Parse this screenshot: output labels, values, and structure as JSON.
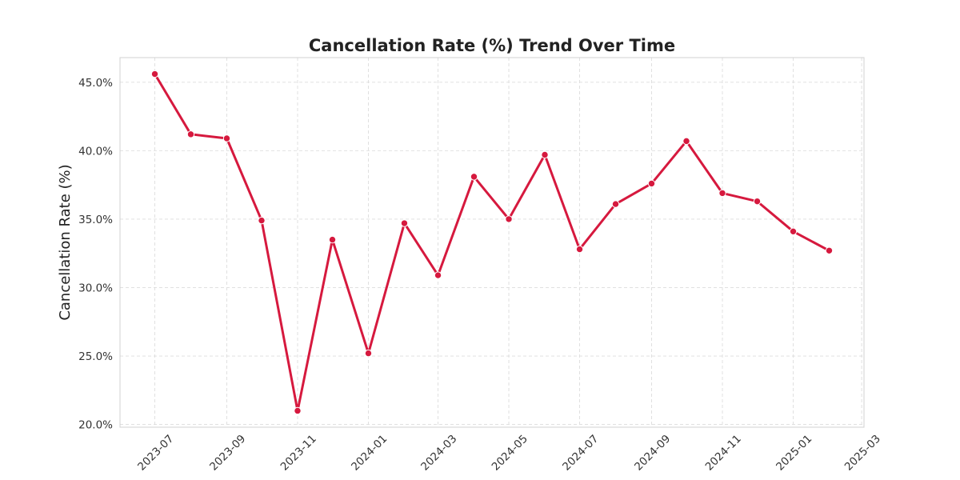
{
  "colors": {
    "line": "#d6193e",
    "marker_edge": "#ffffff",
    "grid": "#dddddd",
    "frame": "#d0d0d0",
    "text": "#222222",
    "background": "#ffffff"
  },
  "chart_data": {
    "type": "line",
    "title": "Cancellation Rate (%) Trend Over Time",
    "xlabel": "",
    "ylabel": "Cancellation Rate (%)",
    "ylim": [
      19.8,
      46.8
    ],
    "grid": true,
    "y_ticks": [
      20,
      25,
      30,
      35,
      40,
      45
    ],
    "y_tick_labels": [
      "20.0%",
      "25.0%",
      "30.0%",
      "35.0%",
      "40.0%",
      "45.0%"
    ],
    "x_ticks": [
      "2023-07-01",
      "2023-09-01",
      "2023-11-01",
      "2024-01-01",
      "2024-03-01",
      "2024-05-01",
      "2024-07-01",
      "2024-09-01",
      "2024-11-01",
      "2025-01-01",
      "2025-03-01"
    ],
    "x_tick_labels": [
      "2023-07",
      "2023-09",
      "2023-11",
      "2024-01",
      "2024-03",
      "2024-05",
      "2024-07",
      "2024-09",
      "2024-11",
      "2025-01",
      "2025-03"
    ],
    "xlim": [
      "2023-06-01",
      "2025-03-03"
    ],
    "x": [
      "2023-07-01",
      "2023-08-01",
      "2023-09-01",
      "2023-10-01",
      "2023-11-01",
      "2023-12-01",
      "2024-01-01",
      "2024-02-01",
      "2024-03-01",
      "2024-04-01",
      "2024-05-01",
      "2024-06-01",
      "2024-07-01",
      "2024-08-01",
      "2024-09-01",
      "2024-10-01",
      "2024-11-01",
      "2024-12-01",
      "2025-01-01",
      "2025-02-01"
    ],
    "series": [
      {
        "name": "Cancellation Rate (%)",
        "values": [
          45.6,
          41.2,
          40.9,
          34.9,
          21.0,
          33.5,
          25.2,
          34.7,
          30.9,
          38.1,
          35.0,
          39.7,
          32.8,
          36.1,
          37.6,
          40.7,
          36.9,
          36.3,
          34.1,
          32.7
        ]
      }
    ]
  }
}
